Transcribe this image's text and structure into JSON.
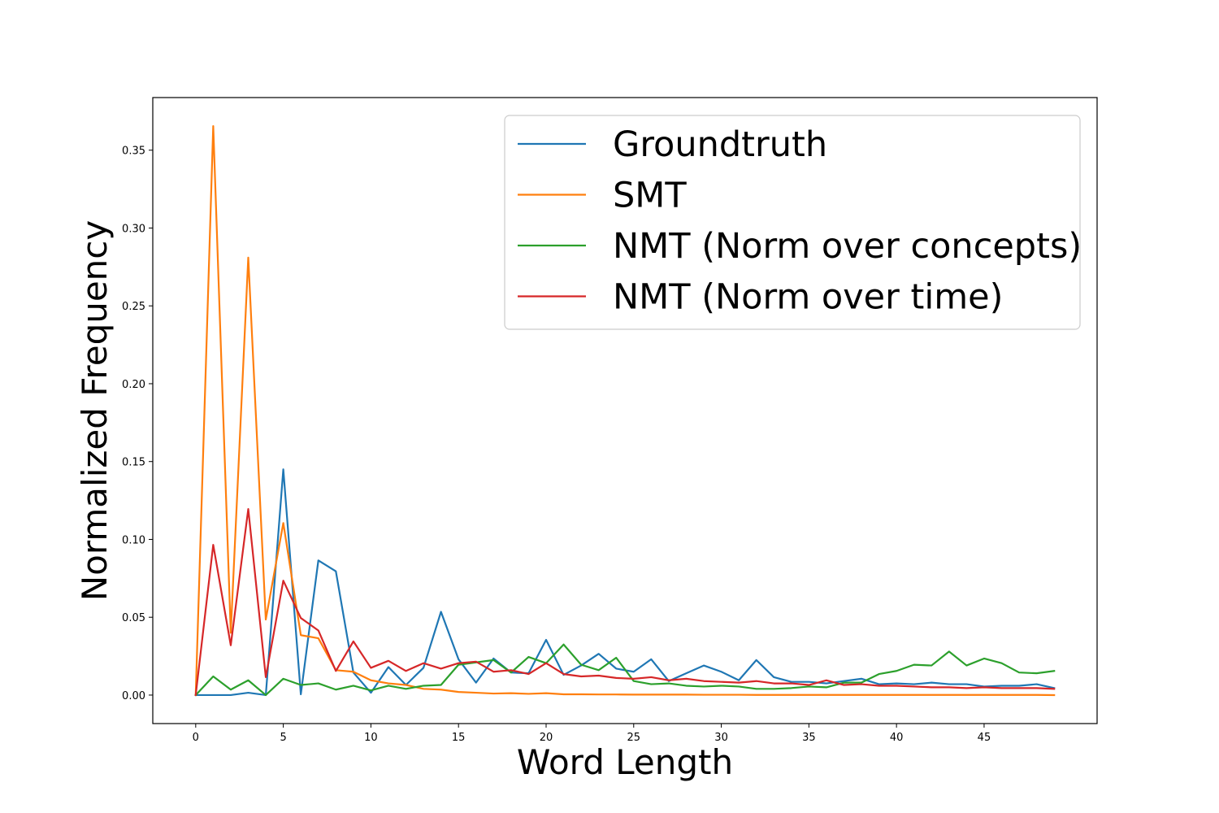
{
  "chart_data": {
    "type": "line",
    "xlabel": "Word Length",
    "ylabel": "Normalized Frequency",
    "xlim": [
      -2.45,
      51.45
    ],
    "ylim": [
      -0.0183,
      0.3838
    ],
    "xticks": [
      0,
      5,
      10,
      15,
      20,
      25,
      30,
      35,
      40,
      45
    ],
    "yticks": [
      0.0,
      0.05,
      0.1,
      0.15,
      0.2,
      0.25,
      0.3,
      0.35
    ],
    "ytick_labels": [
      "0.00",
      "0.05",
      "0.10",
      "0.15",
      "0.20",
      "0.25",
      "0.30",
      "0.35"
    ],
    "grid": false,
    "legend_position": "top-right",
    "x": [
      0,
      1,
      2,
      3,
      4,
      5,
      6,
      7,
      8,
      9,
      10,
      11,
      12,
      13,
      14,
      15,
      16,
      17,
      18,
      19,
      20,
      21,
      22,
      23,
      24,
      25,
      26,
      27,
      28,
      29,
      30,
      31,
      32,
      33,
      34,
      35,
      36,
      37,
      38,
      39,
      40,
      41,
      42,
      43,
      44,
      45,
      46,
      47,
      48,
      49
    ],
    "series": [
      {
        "name": "Groundtruth",
        "color": "#1f77b4",
        "values": [
          0.0,
          0.0,
          0.0,
          0.0015,
          0.0,
          0.145,
          0.0005,
          0.0865,
          0.0795,
          0.0145,
          0.0015,
          0.018,
          0.0065,
          0.0175,
          0.0535,
          0.023,
          0.008,
          0.0235,
          0.0145,
          0.014,
          0.0355,
          0.013,
          0.019,
          0.0265,
          0.017,
          0.015,
          0.023,
          0.009,
          0.014,
          0.019,
          0.015,
          0.0095,
          0.0225,
          0.0115,
          0.0085,
          0.0085,
          0.0075,
          0.009,
          0.0105,
          0.007,
          0.0075,
          0.007,
          0.008,
          0.007,
          0.007,
          0.0055,
          0.006,
          0.006,
          0.007,
          0.0045
        ]
      },
      {
        "name": "SMT",
        "color": "#ff7f0e",
        "values": [
          0.0,
          0.3655,
          0.04,
          0.281,
          0.0485,
          0.1105,
          0.0385,
          0.0365,
          0.016,
          0.015,
          0.0095,
          0.0075,
          0.0065,
          0.004,
          0.0035,
          0.002,
          0.0015,
          0.001,
          0.0012,
          0.0008,
          0.0012,
          0.0005,
          0.0005,
          0.0004,
          0.0004,
          0.0003,
          0.0003,
          0.0003,
          0.0003,
          0.0002,
          0.0002,
          0.0002,
          0.0001,
          0.0001,
          0.0001,
          0.0001,
          0.0001,
          0.0001,
          0.0001,
          0.0001,
          0.0001,
          0.0001,
          0.0001,
          0.0001,
          0.0001,
          0.0001,
          0.0001,
          0.0001,
          0.0001,
          0.0
        ]
      },
      {
        "name": "NMT (Norm over concepts)",
        "color": "#2ca02c",
        "values": [
          0.0,
          0.012,
          0.0035,
          0.0095,
          0.0,
          0.0105,
          0.0065,
          0.0075,
          0.0035,
          0.006,
          0.003,
          0.006,
          0.004,
          0.006,
          0.0065,
          0.0195,
          0.021,
          0.0225,
          0.0145,
          0.0245,
          0.0205,
          0.0325,
          0.0195,
          0.016,
          0.024,
          0.009,
          0.007,
          0.0075,
          0.006,
          0.0055,
          0.006,
          0.0055,
          0.004,
          0.004,
          0.0045,
          0.0055,
          0.005,
          0.008,
          0.008,
          0.0135,
          0.0155,
          0.0195,
          0.019,
          0.028,
          0.019,
          0.0235,
          0.0205,
          0.0145,
          0.014,
          0.0155
        ]
      },
      {
        "name": "NMT (Norm over time)",
        "color": "#d62728",
        "values": [
          0.0,
          0.0965,
          0.032,
          0.1195,
          0.0115,
          0.0735,
          0.0495,
          0.0415,
          0.0155,
          0.0345,
          0.0175,
          0.022,
          0.0155,
          0.0205,
          0.017,
          0.0205,
          0.0215,
          0.015,
          0.016,
          0.0135,
          0.0205,
          0.0135,
          0.012,
          0.0125,
          0.011,
          0.0105,
          0.0115,
          0.0095,
          0.0105,
          0.009,
          0.0085,
          0.008,
          0.009,
          0.0075,
          0.0075,
          0.0065,
          0.0095,
          0.0065,
          0.007,
          0.006,
          0.006,
          0.0055,
          0.005,
          0.005,
          0.0045,
          0.005,
          0.0045,
          0.0045,
          0.0045,
          0.004
        ]
      }
    ]
  }
}
